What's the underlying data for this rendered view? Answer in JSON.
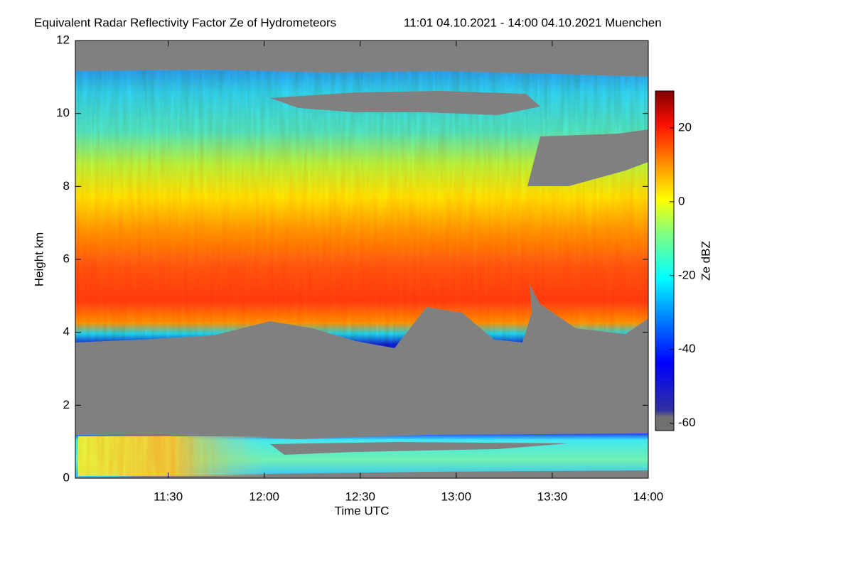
{
  "chart_data": {
    "type": "heatmap",
    "title": "Equivalent Radar Reflectivity Factor Ze of Hydrometeors",
    "subtitle": "11:01 04.10.2021 - 14:00 04.10.2021 Muenchen",
    "x_label": "Time UTC",
    "y_label": "Height km",
    "colorbar_label": "Ze dBZ",
    "xlim": [
      661,
      840
    ],
    "xticks": [
      {
        "value": 690,
        "label": "11:30"
      },
      {
        "value": 720,
        "label": "12:00"
      },
      {
        "value": 750,
        "label": "12:30"
      },
      {
        "value": 780,
        "label": "13:00"
      },
      {
        "value": 810,
        "label": "13:30"
      },
      {
        "value": 840,
        "label": "14:00"
      }
    ],
    "ylim": [
      0,
      12
    ],
    "yticks": [
      0,
      2,
      4,
      6,
      8,
      10,
      12
    ],
    "clim": [
      -62,
      30
    ],
    "cticks": [
      -60,
      -40,
      -20,
      0,
      20
    ]
  }
}
